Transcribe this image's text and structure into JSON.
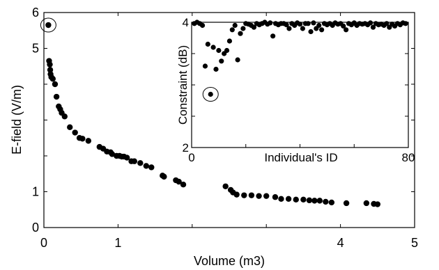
{
  "chart_data": [
    {
      "type": "scatter",
      "title": "",
      "xlabel": "Volume (m3)",
      "ylabel": "E-field (V/m)",
      "xlim": [
        0,
        5
      ],
      "ylim": [
        0,
        6
      ],
      "x_tick_labels": [
        "0",
        "1",
        "4",
        "5"
      ],
      "y_tick_labels": [
        "0",
        "1",
        "5",
        "6"
      ],
      "x_tick_values": [
        0,
        1,
        2,
        3,
        4,
        5
      ],
      "y_tick_values": [
        0,
        1,
        2,
        3,
        4,
        5,
        6
      ],
      "grid": false,
      "marker_color": "#000000",
      "highlighted_point": {
        "x": 0.06,
        "y": 5.65
      },
      "series": [
        {
          "x": [
            0.06,
            0.07,
            0.08,
            0.085,
            0.09,
            0.1,
            0.12,
            0.15,
            0.17,
            0.2,
            0.22,
            0.24,
            0.28,
            0.35,
            0.42,
            0.48,
            0.52,
            0.6,
            0.75,
            0.8,
            0.85,
            0.9,
            0.92,
            0.98,
            1.02,
            1.05,
            1.08,
            1.12,
            1.18,
            1.22,
            1.3,
            1.38,
            1.45,
            1.6,
            1.62,
            1.78,
            1.82,
            1.88,
            2.45,
            2.52,
            2.55,
            2.6,
            2.7,
            2.8,
            2.9,
            3.0,
            3.12,
            3.2,
            3.3,
            3.4,
            3.5,
            3.58,
            3.65,
            3.72,
            3.8,
            3.88,
            4.08,
            4.35,
            4.45,
            4.5
          ],
          "y": [
            5.65,
            4.65,
            4.55,
            4.4,
            4.28,
            4.2,
            4.15,
            4.0,
            3.65,
            3.38,
            3.3,
            3.2,
            3.1,
            2.8,
            2.65,
            2.5,
            2.48,
            2.42,
            2.25,
            2.2,
            2.12,
            2.1,
            2.05,
            2.0,
            2.0,
            1.98,
            1.98,
            1.95,
            1.85,
            1.85,
            1.8,
            1.72,
            1.68,
            1.45,
            1.42,
            1.32,
            1.28,
            1.2,
            1.15,
            1.05,
            0.98,
            0.92,
            0.9,
            0.9,
            0.88,
            0.88,
            0.85,
            0.8,
            0.8,
            0.78,
            0.78,
            0.76,
            0.75,
            0.75,
            0.72,
            0.7,
            0.68,
            0.68,
            0.66,
            0.65
          ]
        }
      ]
    },
    {
      "type": "scatter",
      "title": "",
      "xlabel": "Individual's ID",
      "ylabel": "Constraint (dB)",
      "xlim": [
        0,
        80
      ],
      "ylim": [
        2,
        4
      ],
      "x_tick_labels": [
        "0",
        "80"
      ],
      "y_tick_labels": [
        "2",
        "4"
      ],
      "x_tick_values": [
        0,
        20,
        40,
        60,
        80
      ],
      "y_tick_values": [
        2,
        2.5,
        3,
        3.5,
        4
      ],
      "grid": false,
      "marker_color": "#000000",
      "highlighted_point": {
        "x": 7,
        "y": 2.85
      },
      "series": [
        {
          "x": [
            1,
            2,
            3,
            4,
            5,
            6,
            7,
            8,
            9,
            10,
            11,
            12,
            13,
            14,
            15,
            16,
            17,
            18,
            19,
            20,
            21,
            22,
            23,
            24,
            25,
            26,
            27,
            28,
            29,
            30,
            31,
            32,
            33,
            34,
            35,
            36,
            37,
            38,
            39,
            40,
            41,
            42,
            43,
            44,
            45,
            46,
            47,
            48,
            49,
            50,
            51,
            52,
            53,
            54,
            55,
            56,
            57,
            58,
            59,
            60,
            61,
            62,
            63,
            64,
            65,
            66,
            67,
            68,
            69,
            70,
            71,
            72,
            73,
            74,
            75,
            76,
            77,
            78,
            79
          ],
          "y": [
            3.98,
            4.0,
            3.98,
            3.95,
            3.3,
            3.65,
            2.85,
            3.6,
            3.25,
            3.55,
            3.38,
            3.5,
            3.55,
            3.7,
            3.88,
            3.95,
            3.4,
            3.82,
            3.9,
            3.98,
            3.97,
            3.95,
            3.92,
            3.98,
            3.96,
            3.98,
            4.0,
            3.97,
            3.99,
            3.78,
            3.98,
            3.96,
            3.98,
            3.98,
            3.96,
            3.9,
            3.98,
            3.95,
            3.99,
            3.97,
            3.9,
            3.98,
            3.98,
            3.85,
            3.99,
            3.9,
            3.95,
            3.88,
            3.98,
            3.96,
            3.98,
            3.95,
            3.99,
            3.97,
            3.98,
            3.94,
            3.88,
            3.98,
            3.96,
            3.99,
            3.95,
            3.98,
            3.97,
            3.98,
            3.96,
            3.99,
            3.92,
            3.98,
            3.96,
            3.97,
            3.95,
            3.98,
            3.92,
            3.97,
            3.94,
            3.98,
            3.96,
            3.99,
            3.98
          ]
        }
      ]
    }
  ]
}
